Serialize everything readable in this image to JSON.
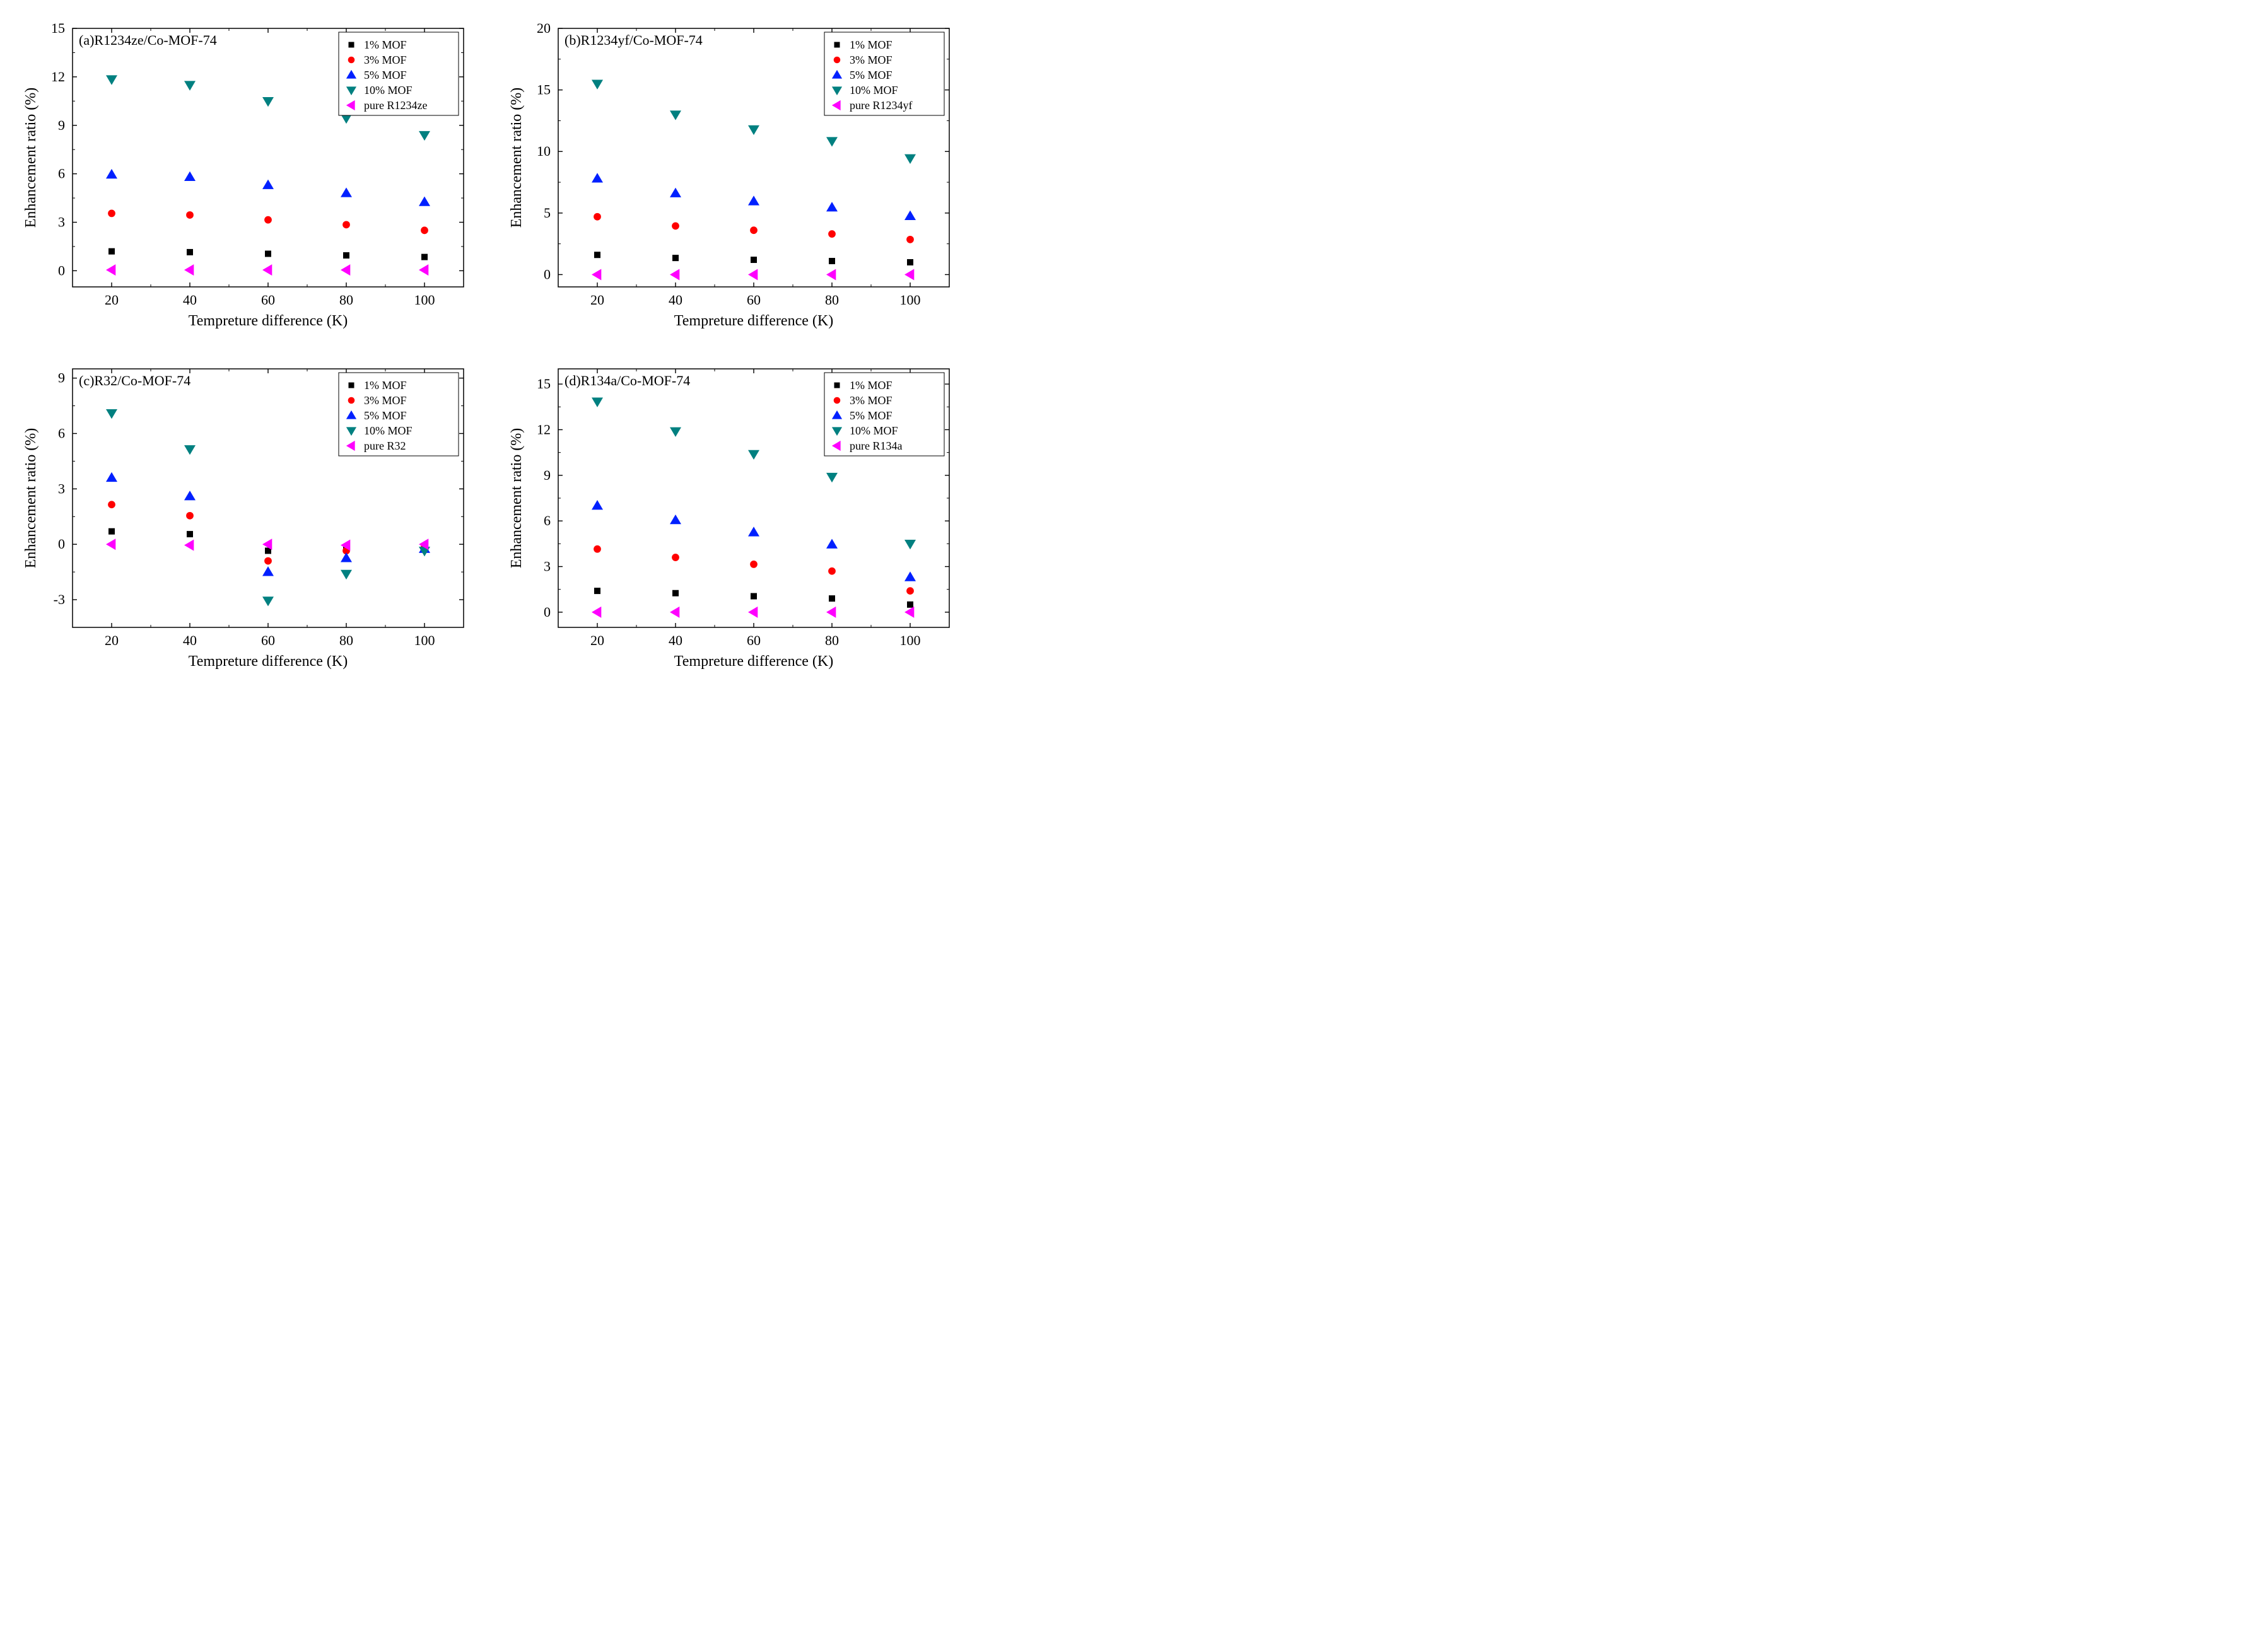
{
  "figure": {
    "background_color": "#ffffff",
    "font_family": "Times New Roman",
    "axis_color": "#000000",
    "x_label": "Tempreture difference (K)",
    "y_label": "Enhancement ratio (%)",
    "x_label_fontsize": 24,
    "y_label_fontsize": 24,
    "tick_fontsize": 22,
    "title_fontsize": 22,
    "legend_fontsize": 18,
    "x_values": [
      20,
      40,
      60,
      80,
      100
    ],
    "x_ticks": [
      20,
      40,
      60,
      80,
      100
    ],
    "marker_size": 10,
    "series_meta": [
      {
        "key": "s1",
        "label": "1% MOF",
        "color": "#000000",
        "marker": "square"
      },
      {
        "key": "s2",
        "label": "3% MOF",
        "color": "#ff0000",
        "marker": "circle"
      },
      {
        "key": "s3",
        "label": "5% MOF",
        "color": "#0020ff",
        "marker": "triangle-up"
      },
      {
        "key": "s4",
        "label": "10% MOF",
        "color": "#008080",
        "marker": "triangle-down"
      },
      {
        "key": "s5",
        "label": "",
        "color": "#ff00ff",
        "marker": "triangle-left"
      }
    ],
    "panels": [
      {
        "id": "a",
        "title": "(a)R1234ze/Co-MOF-74",
        "pure_label": " pure R1234ze",
        "ylim": [
          -1,
          15
        ],
        "yticks": [
          0,
          3,
          6,
          9,
          12,
          15
        ],
        "type": "scatter",
        "series": {
          "s1": [
            1.2,
            1.15,
            1.05,
            0.95,
            0.85
          ],
          "s2": [
            3.55,
            3.45,
            3.15,
            2.85,
            2.5
          ],
          "s3": [
            5.95,
            5.8,
            5.3,
            4.8,
            4.25
          ],
          "s4": [
            11.85,
            11.5,
            10.5,
            9.45,
            8.4
          ],
          "s5": [
            0.05,
            0.05,
            0.05,
            0.05,
            0.05
          ]
        }
      },
      {
        "id": "b",
        "title": "(b)R1234yf/Co-MOF-74",
        "pure_label": " pure R1234yf",
        "ylim": [
          -1,
          20
        ],
        "yticks": [
          0,
          5,
          10,
          15,
          20
        ],
        "type": "scatter",
        "series": {
          "s1": [
            1.6,
            1.35,
            1.2,
            1.1,
            1.0
          ],
          "s2": [
            4.7,
            3.95,
            3.6,
            3.3,
            2.85
          ],
          "s3": [
            7.8,
            6.6,
            5.95,
            5.45,
            4.75
          ],
          "s4": [
            15.5,
            13.0,
            11.8,
            10.85,
            9.45
          ],
          "s5": [
            0.0,
            0.0,
            0.0,
            0.0,
            0.0
          ]
        }
      },
      {
        "id": "c",
        "title": "(c)R32/Co-MOF-74",
        "pure_label": " pure R32",
        "ylim": [
          -4.5,
          9.5
        ],
        "yticks": [
          -3,
          0,
          3,
          6,
          9
        ],
        "type": "scatter",
        "series": {
          "s1": [
            0.7,
            0.55,
            -0.35,
            -0.2,
            -0.1
          ],
          "s2": [
            2.15,
            1.55,
            -0.9,
            -0.35,
            -0.15
          ],
          "s3": [
            3.6,
            2.6,
            -1.5,
            -0.75,
            -0.25
          ],
          "s4": [
            7.1,
            5.15,
            -3.05,
            -1.6,
            -0.35
          ],
          "s5": [
            0.0,
            -0.05,
            0.0,
            -0.05,
            0.0
          ]
        }
      },
      {
        "id": "d",
        "title": "(d)R134a/Co-MOF-74",
        "pure_label": " pure R134a",
        "ylim": [
          -1,
          16
        ],
        "yticks": [
          0,
          3,
          6,
          9,
          12,
          15
        ],
        "type": "scatter",
        "series": {
          "s1": [
            1.4,
            1.25,
            1.05,
            0.9,
            0.5
          ],
          "s2": [
            4.15,
            3.6,
            3.15,
            2.7,
            1.4
          ],
          "s3": [
            7.0,
            6.05,
            5.25,
            4.45,
            2.3
          ],
          "s4": [
            13.85,
            11.9,
            10.4,
            8.9,
            4.5
          ],
          "s5": [
            0.0,
            0.0,
            0.0,
            0.0,
            0.0
          ]
        }
      }
    ]
  }
}
